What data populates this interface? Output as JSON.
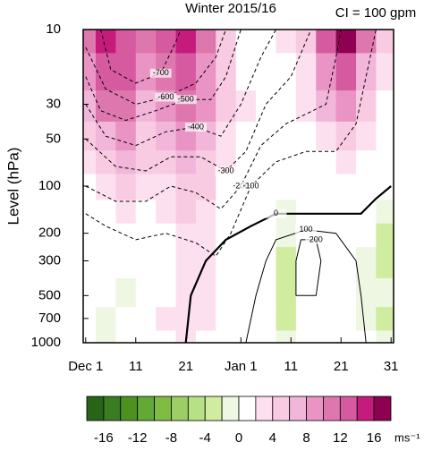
{
  "chart_data": {
    "type": "heatmap",
    "title": "Winter 2015/16",
    "subtitle": "CI = 100 gpm",
    "y_label": "Level (hPa)",
    "xlim": [
      -0.5,
      61.5
    ],
    "xticks": [
      {
        "value": 0,
        "label": "Dec 1"
      },
      {
        "value": 10,
        "label": "11"
      },
      {
        "value": 20,
        "label": "21"
      },
      {
        "value": 31,
        "label": "Jan 1"
      },
      {
        "value": 41,
        "label": "11"
      },
      {
        "value": 51,
        "label": "21"
      },
      {
        "value": 61,
        "label": "31"
      }
    ],
    "ylim": [
      1000,
      10
    ],
    "ylog": true,
    "yticks": [
      10,
      30,
      50,
      100,
      200,
      300,
      500,
      700,
      1000
    ],
    "x": [
      0,
      4,
      8,
      12,
      16,
      20,
      24,
      28,
      32,
      36,
      40,
      44,
      48,
      52,
      56,
      60
    ],
    "levels": [
      10,
      20,
      30,
      50,
      70,
      100,
      150,
      200,
      300,
      500,
      700,
      1000
    ],
    "z": [
      [
        10,
        14,
        12,
        10,
        12,
        14,
        10,
        4,
        0,
        0,
        2,
        4,
        12,
        18,
        10,
        4
      ],
      [
        8,
        12,
        12,
        8,
        10,
        12,
        8,
        4,
        0,
        0,
        0,
        2,
        8,
        12,
        6,
        2
      ],
      [
        6,
        10,
        10,
        6,
        8,
        10,
        8,
        4,
        2,
        0,
        0,
        2,
        6,
        8,
        4,
        0
      ],
      [
        4,
        6,
        8,
        4,
        6,
        8,
        6,
        2,
        0,
        0,
        0,
        0,
        2,
        4,
        2,
        0
      ],
      [
        2,
        4,
        6,
        4,
        4,
        6,
        4,
        2,
        0,
        0,
        0,
        0,
        0,
        2,
        0,
        0
      ],
      [
        0,
        2,
        4,
        2,
        2,
        4,
        4,
        0,
        0,
        0,
        0,
        0,
        0,
        0,
        0,
        0
      ],
      [
        0,
        0,
        2,
        0,
        2,
        4,
        2,
        0,
        0,
        0,
        -2,
        0,
        0,
        0,
        0,
        -2
      ],
      [
        0,
        0,
        0,
        0,
        0,
        2,
        2,
        0,
        0,
        0,
        -2,
        0,
        0,
        0,
        0,
        -4
      ],
      [
        0,
        0,
        0,
        0,
        0,
        2,
        2,
        0,
        0,
        0,
        -4,
        0,
        0,
        0,
        -2,
        -4
      ],
      [
        0,
        0,
        -2,
        0,
        0,
        2,
        2,
        0,
        0,
        0,
        -4,
        0,
        0,
        0,
        -2,
        -2
      ],
      [
        0,
        -2,
        0,
        0,
        2,
        2,
        2,
        0,
        0,
        0,
        -4,
        0,
        0,
        0,
        -2,
        -4
      ],
      [
        0,
        -2,
        0,
        0,
        0,
        2,
        0,
        0,
        0,
        0,
        -2,
        0,
        0,
        0,
        0,
        -2
      ]
    ],
    "contours": [
      {
        "level": -700,
        "points": [
          [
            3,
            10
          ],
          [
            5,
            18
          ],
          [
            10,
            22
          ],
          [
            15,
            19
          ],
          [
            18,
            12
          ],
          [
            19,
            10
          ]
        ]
      },
      {
        "level": -600,
        "points": [
          [
            0,
            13
          ],
          [
            4,
            24
          ],
          [
            10,
            30
          ],
          [
            16,
            27
          ],
          [
            22,
            22
          ],
          [
            26,
            15
          ],
          [
            28,
            10
          ]
        ]
      },
      {
        "level": -500,
        "points": [
          [
            0,
            20
          ],
          [
            3,
            33
          ],
          [
            8,
            38
          ],
          [
            14,
            33
          ],
          [
            20,
            28
          ],
          [
            25,
            28
          ],
          [
            28,
            20
          ],
          [
            31,
            10
          ]
        ]
      },
      {
        "level": -400,
        "points": [
          [
            0,
            30
          ],
          [
            4,
            48
          ],
          [
            10,
            55
          ],
          [
            16,
            45
          ],
          [
            22,
            42
          ],
          [
            27,
            48
          ],
          [
            31,
            30
          ],
          [
            35,
            15
          ],
          [
            38,
            10
          ]
        ]
      },
      {
        "level": -300,
        "points": [
          [
            0,
            50
          ],
          [
            6,
            75
          ],
          [
            12,
            80
          ],
          [
            17,
            65
          ],
          [
            23,
            65
          ],
          [
            28,
            80
          ],
          [
            32,
            60
          ],
          [
            36,
            30
          ],
          [
            41,
            20
          ],
          [
            45,
            10
          ]
        ]
      },
      {
        "level": -200,
        "points": [
          [
            0,
            100
          ],
          [
            6,
            125
          ],
          [
            12,
            125
          ],
          [
            17,
            100
          ],
          [
            22,
            110
          ],
          [
            27,
            140
          ],
          [
            31,
            100
          ],
          [
            35,
            55
          ],
          [
            40,
            40
          ],
          [
            48,
            30
          ],
          [
            50,
            15
          ],
          [
            51,
            10
          ]
        ]
      },
      {
        "level": -100,
        "points": [
          [
            0,
            150
          ],
          [
            4,
            180
          ],
          [
            10,
            220
          ],
          [
            16,
            200
          ],
          [
            22,
            230
          ],
          [
            26,
            280
          ],
          [
            29,
            200
          ],
          [
            33,
            100
          ],
          [
            38,
            70
          ],
          [
            44,
            60
          ],
          [
            50,
            60
          ],
          [
            54,
            40
          ],
          [
            56,
            20
          ],
          [
            58,
            10
          ]
        ]
      },
      {
        "level": 0,
        "points": [
          [
            20,
            1000
          ],
          [
            21,
            500
          ],
          [
            24,
            300
          ],
          [
            28,
            220
          ],
          [
            33,
            180
          ],
          [
            38,
            150
          ],
          [
            44,
            150
          ],
          [
            50,
            150
          ],
          [
            55,
            150
          ],
          [
            58,
            120
          ],
          [
            61,
            100
          ]
        ]
      },
      {
        "level": 100,
        "points": [
          [
            32,
            1000
          ],
          [
            34,
            500
          ],
          [
            36,
            300
          ],
          [
            38,
            220
          ],
          [
            44,
            190
          ],
          [
            50,
            200
          ],
          [
            54,
            300
          ],
          [
            55,
            500
          ],
          [
            56,
            1000
          ]
        ]
      },
      {
        "level": 200,
        "points": [
          [
            42,
            500
          ],
          [
            42,
            300
          ],
          [
            43,
            220
          ],
          [
            46,
            220
          ],
          [
            47,
            300
          ],
          [
            46,
            500
          ],
          [
            42,
            500
          ]
        ]
      }
    ],
    "colorbar": {
      "levels": [
        -18,
        -16,
        -14,
        -12,
        -10,
        -8,
        -6,
        -4,
        -2,
        0,
        2,
        4,
        6,
        8,
        10,
        12,
        14,
        16,
        18
      ],
      "colors": [
        "#276419",
        "#3a7d20",
        "#4d9221",
        "#62a935",
        "#7fbc41",
        "#9cce65",
        "#b8e186",
        "#d0ec9f",
        "#eef7e2",
        "#ffffff",
        "#fde0ef",
        "#f9cbe2",
        "#f1b6da",
        "#e994c4",
        "#de77ae",
        "#d55a9f",
        "#c51b7d",
        "#8e0152"
      ],
      "ticks": [
        -16,
        -12,
        -8,
        -4,
        0,
        4,
        8,
        12,
        16
      ],
      "unit": "ms⁻¹"
    }
  }
}
